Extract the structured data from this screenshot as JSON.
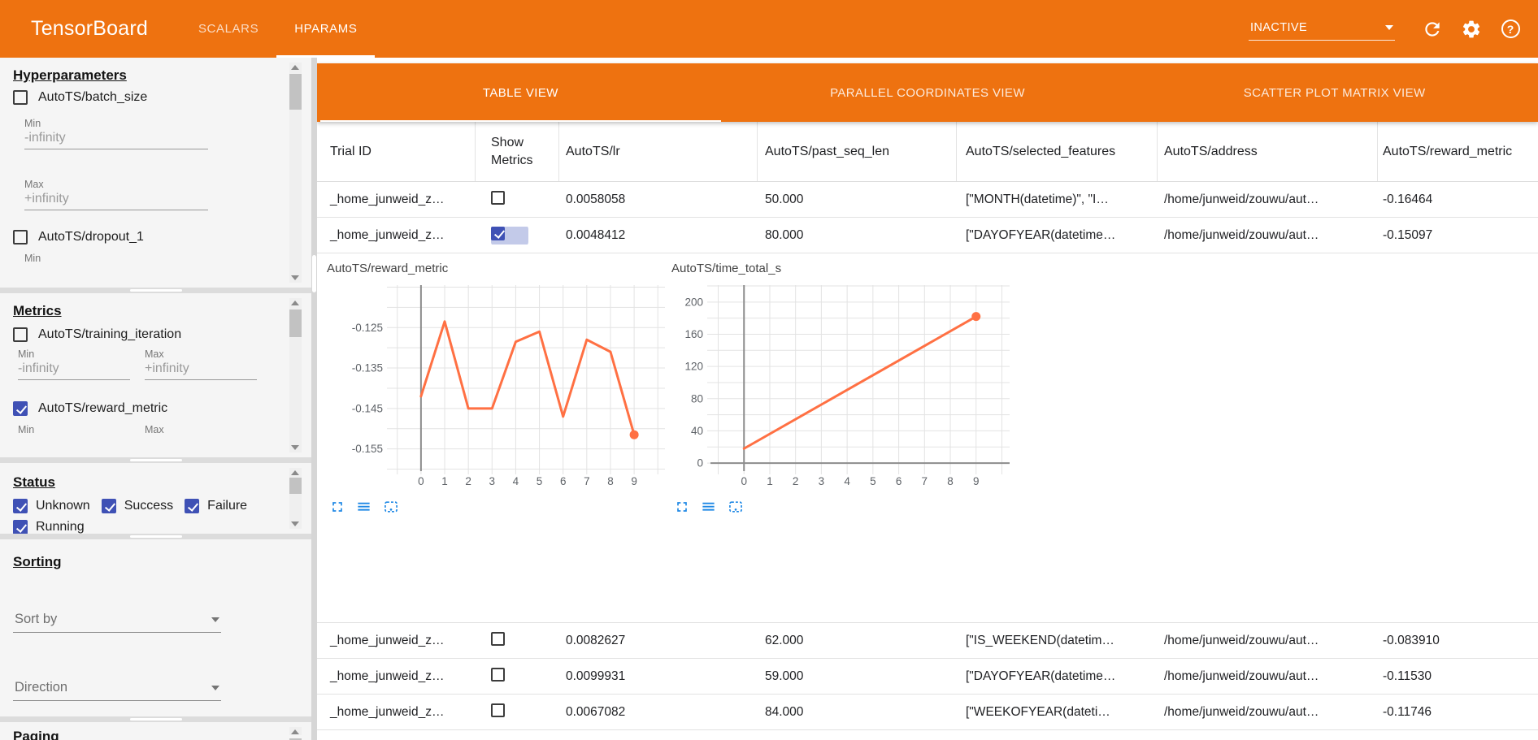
{
  "colors": {
    "header_orange": "#ee7210",
    "accent_indigo": "#3f51b5",
    "chart_line": "#ff7043",
    "tool_icon_blue": "#1e88e5"
  },
  "header": {
    "title": "TensorBoard",
    "nav_tabs": [
      {
        "label": "SCALARS",
        "active": false
      },
      {
        "label": "HPARAMS",
        "active": true
      }
    ],
    "run_status_dropdown": "INACTIVE"
  },
  "sidebar": {
    "hyperparameters": {
      "title": "Hyperparameters",
      "batch_size": {
        "label": "AutoTS/batch_size",
        "checked": false,
        "min_label": "Min",
        "min_value": "-infinity",
        "max_label": "Max",
        "max_value": "+infinity"
      },
      "dropout_1": {
        "label": "AutoTS/dropout_1",
        "checked": false,
        "min_label": "Min"
      }
    },
    "metrics": {
      "title": "Metrics",
      "training_iteration": {
        "label": "AutoTS/training_iteration",
        "checked": false,
        "min_label": "Min",
        "min_value": "-infinity",
        "max_label": "Max",
        "max_value": "+infinity"
      },
      "reward_metric": {
        "label": "AutoTS/reward_metric",
        "checked": true,
        "min_label": "Min",
        "max_label": "Max"
      }
    },
    "status": {
      "title": "Status",
      "options": [
        {
          "label": "Unknown",
          "checked": true
        },
        {
          "label": "Success",
          "checked": true
        },
        {
          "label": "Failure",
          "checked": true
        },
        {
          "label": "Running",
          "checked": true
        }
      ]
    },
    "sorting": {
      "title": "Sorting",
      "sort_by_placeholder": "Sort by",
      "direction_placeholder": "Direction"
    },
    "paging": {
      "title": "Paging"
    }
  },
  "main": {
    "view_tabs": [
      {
        "label": "TABLE VIEW",
        "active": true
      },
      {
        "label": "PARALLEL COORDINATES VIEW",
        "active": false
      },
      {
        "label": "SCATTER PLOT MATRIX VIEW",
        "active": false
      }
    ],
    "table": {
      "columns": [
        "Trial ID",
        "Show Metrics",
        "AutoTS/lr",
        "AutoTS/past_seq_len",
        "AutoTS/selected_features",
        "AutoTS/address",
        "AutoTS/reward_metric"
      ],
      "rows": [
        {
          "trial_id": "_home_junweid_z…",
          "show_metrics": false,
          "lr": "0.0058058",
          "past_seq_len": "50.000",
          "selected_features": "[\"MONTH(datetime)\", \"I…",
          "address": "/home/junweid/zouwu/aut…",
          "reward_metric": "-0.16464"
        },
        {
          "trial_id": "_home_junweid_z…",
          "show_metrics": true,
          "lr": "0.0048412",
          "past_seq_len": "80.000",
          "selected_features": "[\"DAYOFYEAR(datetime…",
          "address": "/home/junweid/zouwu/aut…",
          "reward_metric": "-0.15097"
        },
        {
          "trial_id": "_home_junweid_z…",
          "show_metrics": false,
          "lr": "0.0082627",
          "past_seq_len": "62.000",
          "selected_features": "[\"IS_WEEKEND(datetim…",
          "address": "/home/junweid/zouwu/aut…",
          "reward_metric": "-0.083910"
        },
        {
          "trial_id": "_home_junweid_z…",
          "show_metrics": false,
          "lr": "0.0099931",
          "past_seq_len": "59.000",
          "selected_features": "[\"DAYOFYEAR(datetime…",
          "address": "/home/junweid/zouwu/aut…",
          "reward_metric": "-0.11530"
        },
        {
          "trial_id": "_home_junweid_z…",
          "show_metrics": false,
          "lr": "0.0067082",
          "past_seq_len": "84.000",
          "selected_features": "[\"WEEKOFYEAR(dateti…",
          "address": "/home/junweid/zouwu/aut…",
          "reward_metric": "-0.11746"
        }
      ]
    },
    "chart_data": [
      {
        "type": "line",
        "title": "AutoTS/reward_metric",
        "x": [
          0,
          1,
          2,
          3,
          4,
          5,
          6,
          7,
          8,
          9
        ],
        "values": [
          -0.142,
          -0.1235,
          -0.145,
          -0.145,
          -0.1285,
          -0.126,
          -0.147,
          -0.128,
          -0.131,
          -0.1515
        ],
        "yticks": [
          {
            "v": -0.125,
            "label": "-0.125"
          },
          {
            "v": -0.135,
            "label": "-0.135"
          },
          {
            "v": -0.145,
            "label": "-0.145"
          },
          {
            "v": -0.155,
            "label": "-0.155"
          }
        ],
        "ytick_minor_step": 0.005,
        "ylim": [
          -0.1605,
          -0.1145
        ],
        "xlim": [
          -1.3,
          10.3
        ],
        "xticks": [
          0,
          1,
          2,
          3,
          4,
          5,
          6,
          7,
          8,
          9
        ],
        "grid": true,
        "zero_x_axis": true,
        "zero_y_axis": false,
        "line_color": "#ff7043",
        "end_marker": true
      },
      {
        "type": "line",
        "title": "AutoTS/time_total_s",
        "x": [
          0,
          9
        ],
        "values": [
          18,
          182
        ],
        "yticks": [
          {
            "v": 200,
            "label": "200"
          },
          {
            "v": 160,
            "label": "160"
          },
          {
            "v": 120,
            "label": "120"
          },
          {
            "v": 80,
            "label": "80"
          },
          {
            "v": 40,
            "label": "40"
          },
          {
            "v": 0,
            "label": "0"
          }
        ],
        "ytick_minor_step": 20,
        "ylim": [
          -10,
          221
        ],
        "xlim": [
          -1.3,
          10.3
        ],
        "xticks": [
          0,
          1,
          2,
          3,
          4,
          5,
          6,
          7,
          8,
          9
        ],
        "grid": true,
        "zero_x_axis": true,
        "zero_y_axis": true,
        "line_color": "#ff7043",
        "end_marker": true
      }
    ]
  }
}
